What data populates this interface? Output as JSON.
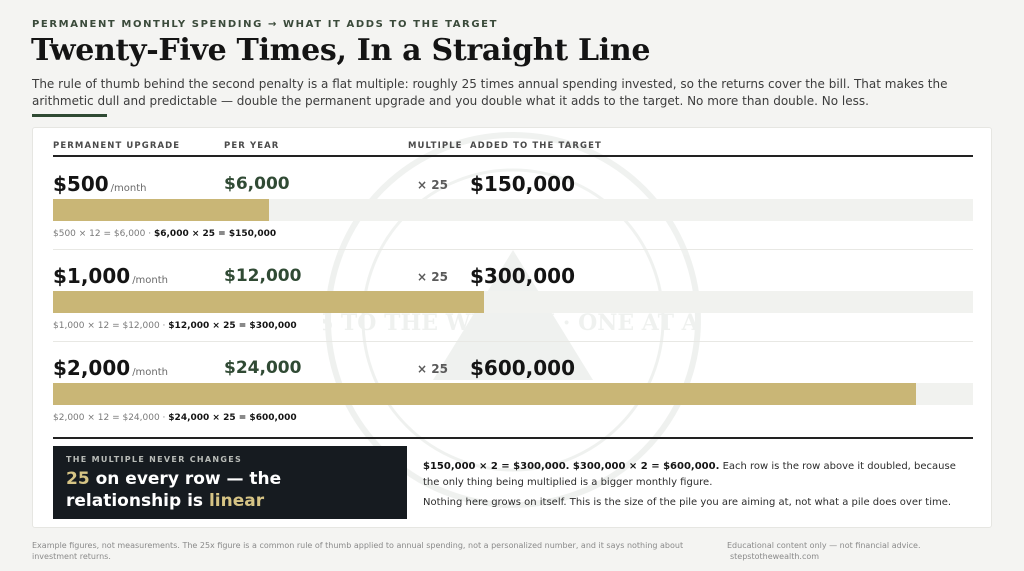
{
  "header": {
    "eyebrow": "PERMANENT MONTHLY SPENDING → WHAT IT ADDS TO THE TARGET",
    "title": "Twenty-Five Times, In a Straight Line",
    "intro": "The rule of thumb behind the second penalty is a flat multiple: roughly 25 times annual spending invested, so the returns cover the bill. That makes the arithmetic dull and predictable — double the permanent upgrade and you double what it adds to the target. No more than double. No less."
  },
  "columns": {
    "upgrade": "PERMANENT UPGRADE",
    "per_year": "PER YEAR",
    "multiple": "MULTIPLE",
    "added": "ADDED TO THE TARGET"
  },
  "bar_scale_max": 640000,
  "rows": [
    {
      "amount": "$500",
      "unit": "/month",
      "per_year": "$6,000",
      "multiple": "× 25",
      "target": "$150,000",
      "target_value": 150000,
      "calc_plain": "$500 × 12 = $6,000 ·",
      "calc_bold": "$6,000 × 25 = $150,000"
    },
    {
      "amount": "$1,000",
      "unit": "/month",
      "per_year": "$12,000",
      "multiple": "× 25",
      "target": "$300,000",
      "target_value": 300000,
      "calc_plain": "$1,000 × 12 = $12,000 ·",
      "calc_bold": "$12,000 × 25 = $300,000"
    },
    {
      "amount": "$2,000",
      "unit": "/month",
      "per_year": "$24,000",
      "multiple": "× 25",
      "target": "$600,000",
      "target_value": 600000,
      "calc_plain": "$2,000 × 12 = $24,000 ·",
      "calc_bold": "$24,000 × 25 = $600,000"
    }
  ],
  "callout": {
    "label": "THE MULTIPLE NEVER CHANGES",
    "number": "25",
    "text_mid": "on every row — the relationship is",
    "accent_word": "linear"
  },
  "explanation": {
    "bold": "$150,000 × 2 = $300,000. $300,000 × 2 = $600,000.",
    "rest": "Each row is the row above it doubled, because the only thing being multiplied is a bigger monthly figure.",
    "second": "Nothing here grows on itself. This is the size of the pile you are aiming at, not what a pile does over time."
  },
  "watermark_text": "STEPS TO THE WEALTH · ONE AT A TIME",
  "footer": {
    "left": "Example figures, not measurements. The 25x figure is a common rule of thumb applied to annual spending, not a personalized number, and it says nothing about investment returns.",
    "right_1": "Educational content only — not financial advice.",
    "right_2": "stepstothewealth.com"
  },
  "colors": {
    "accent_green": "#2f4a33",
    "bar_gold": "#c9b676",
    "callout_bg": "#161b20"
  }
}
